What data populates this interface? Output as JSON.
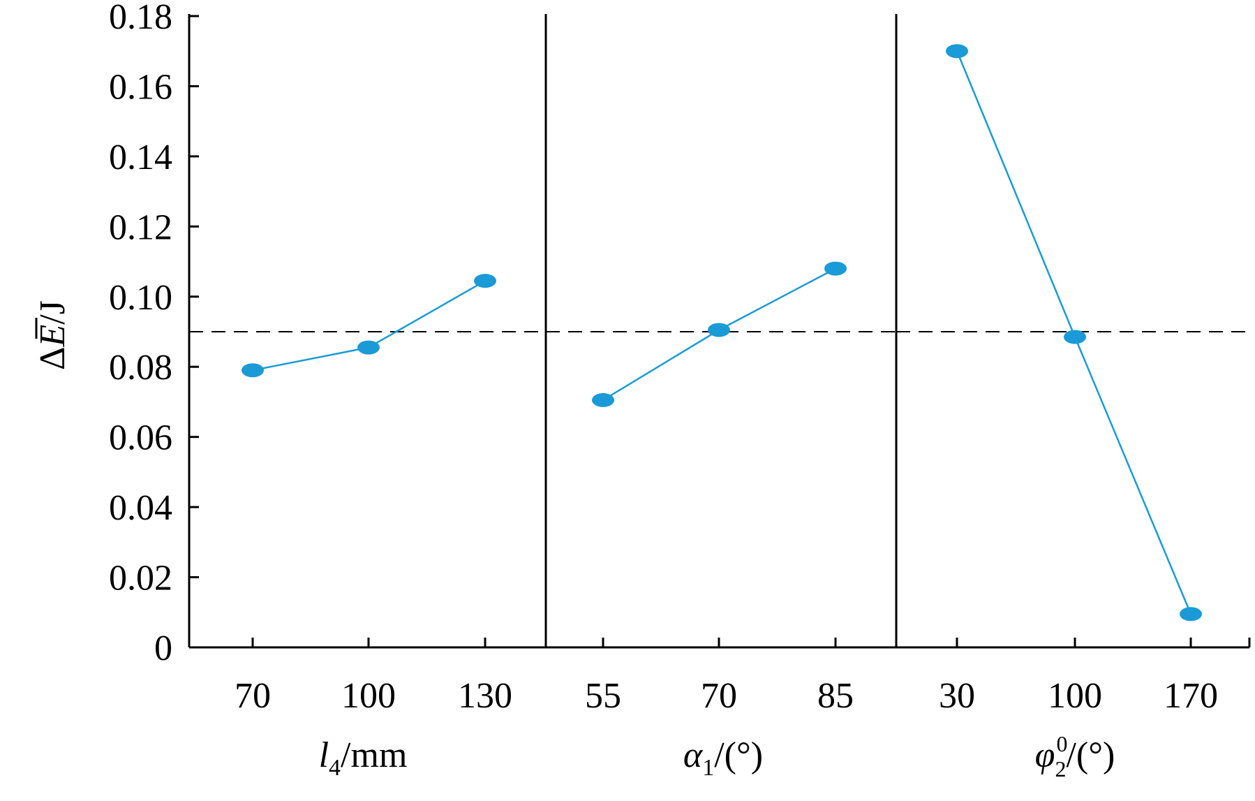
{
  "chart_data": {
    "type": "line",
    "ylabel_parts": {
      "pre": "Δ",
      "sym": "E",
      "post": "/J"
    },
    "ylim": [
      0,
      0.18
    ],
    "yticks": [
      "0",
      "0.02",
      "0.04",
      "0.06",
      "0.08",
      "0.10",
      "0.12",
      "0.14",
      "0.16",
      "0.18"
    ],
    "reference_line": {
      "value": 0.09,
      "style": "dashed"
    },
    "color": "#1a9ad6",
    "panels": [
      {
        "xlabel_parts": {
          "sym": "l",
          "sub": "4",
          "sup": "",
          "post": "/mm"
        },
        "categories": [
          "70",
          "100",
          "130"
        ],
        "values": [
          0.079,
          0.0855,
          0.1045
        ]
      },
      {
        "xlabel_parts": {
          "sym": "α",
          "sub": "1",
          "sup": "",
          "post": "/(°)"
        },
        "categories": [
          "55",
          "70",
          "85"
        ],
        "values": [
          0.0705,
          0.0905,
          0.108
        ]
      },
      {
        "xlabel_parts": {
          "sym": "φ",
          "sub": "2",
          "sup": "0",
          "post": "/(°)"
        },
        "categories": [
          "30",
          "100",
          "170"
        ],
        "values": [
          0.17,
          0.0885,
          0.0095
        ]
      }
    ]
  }
}
